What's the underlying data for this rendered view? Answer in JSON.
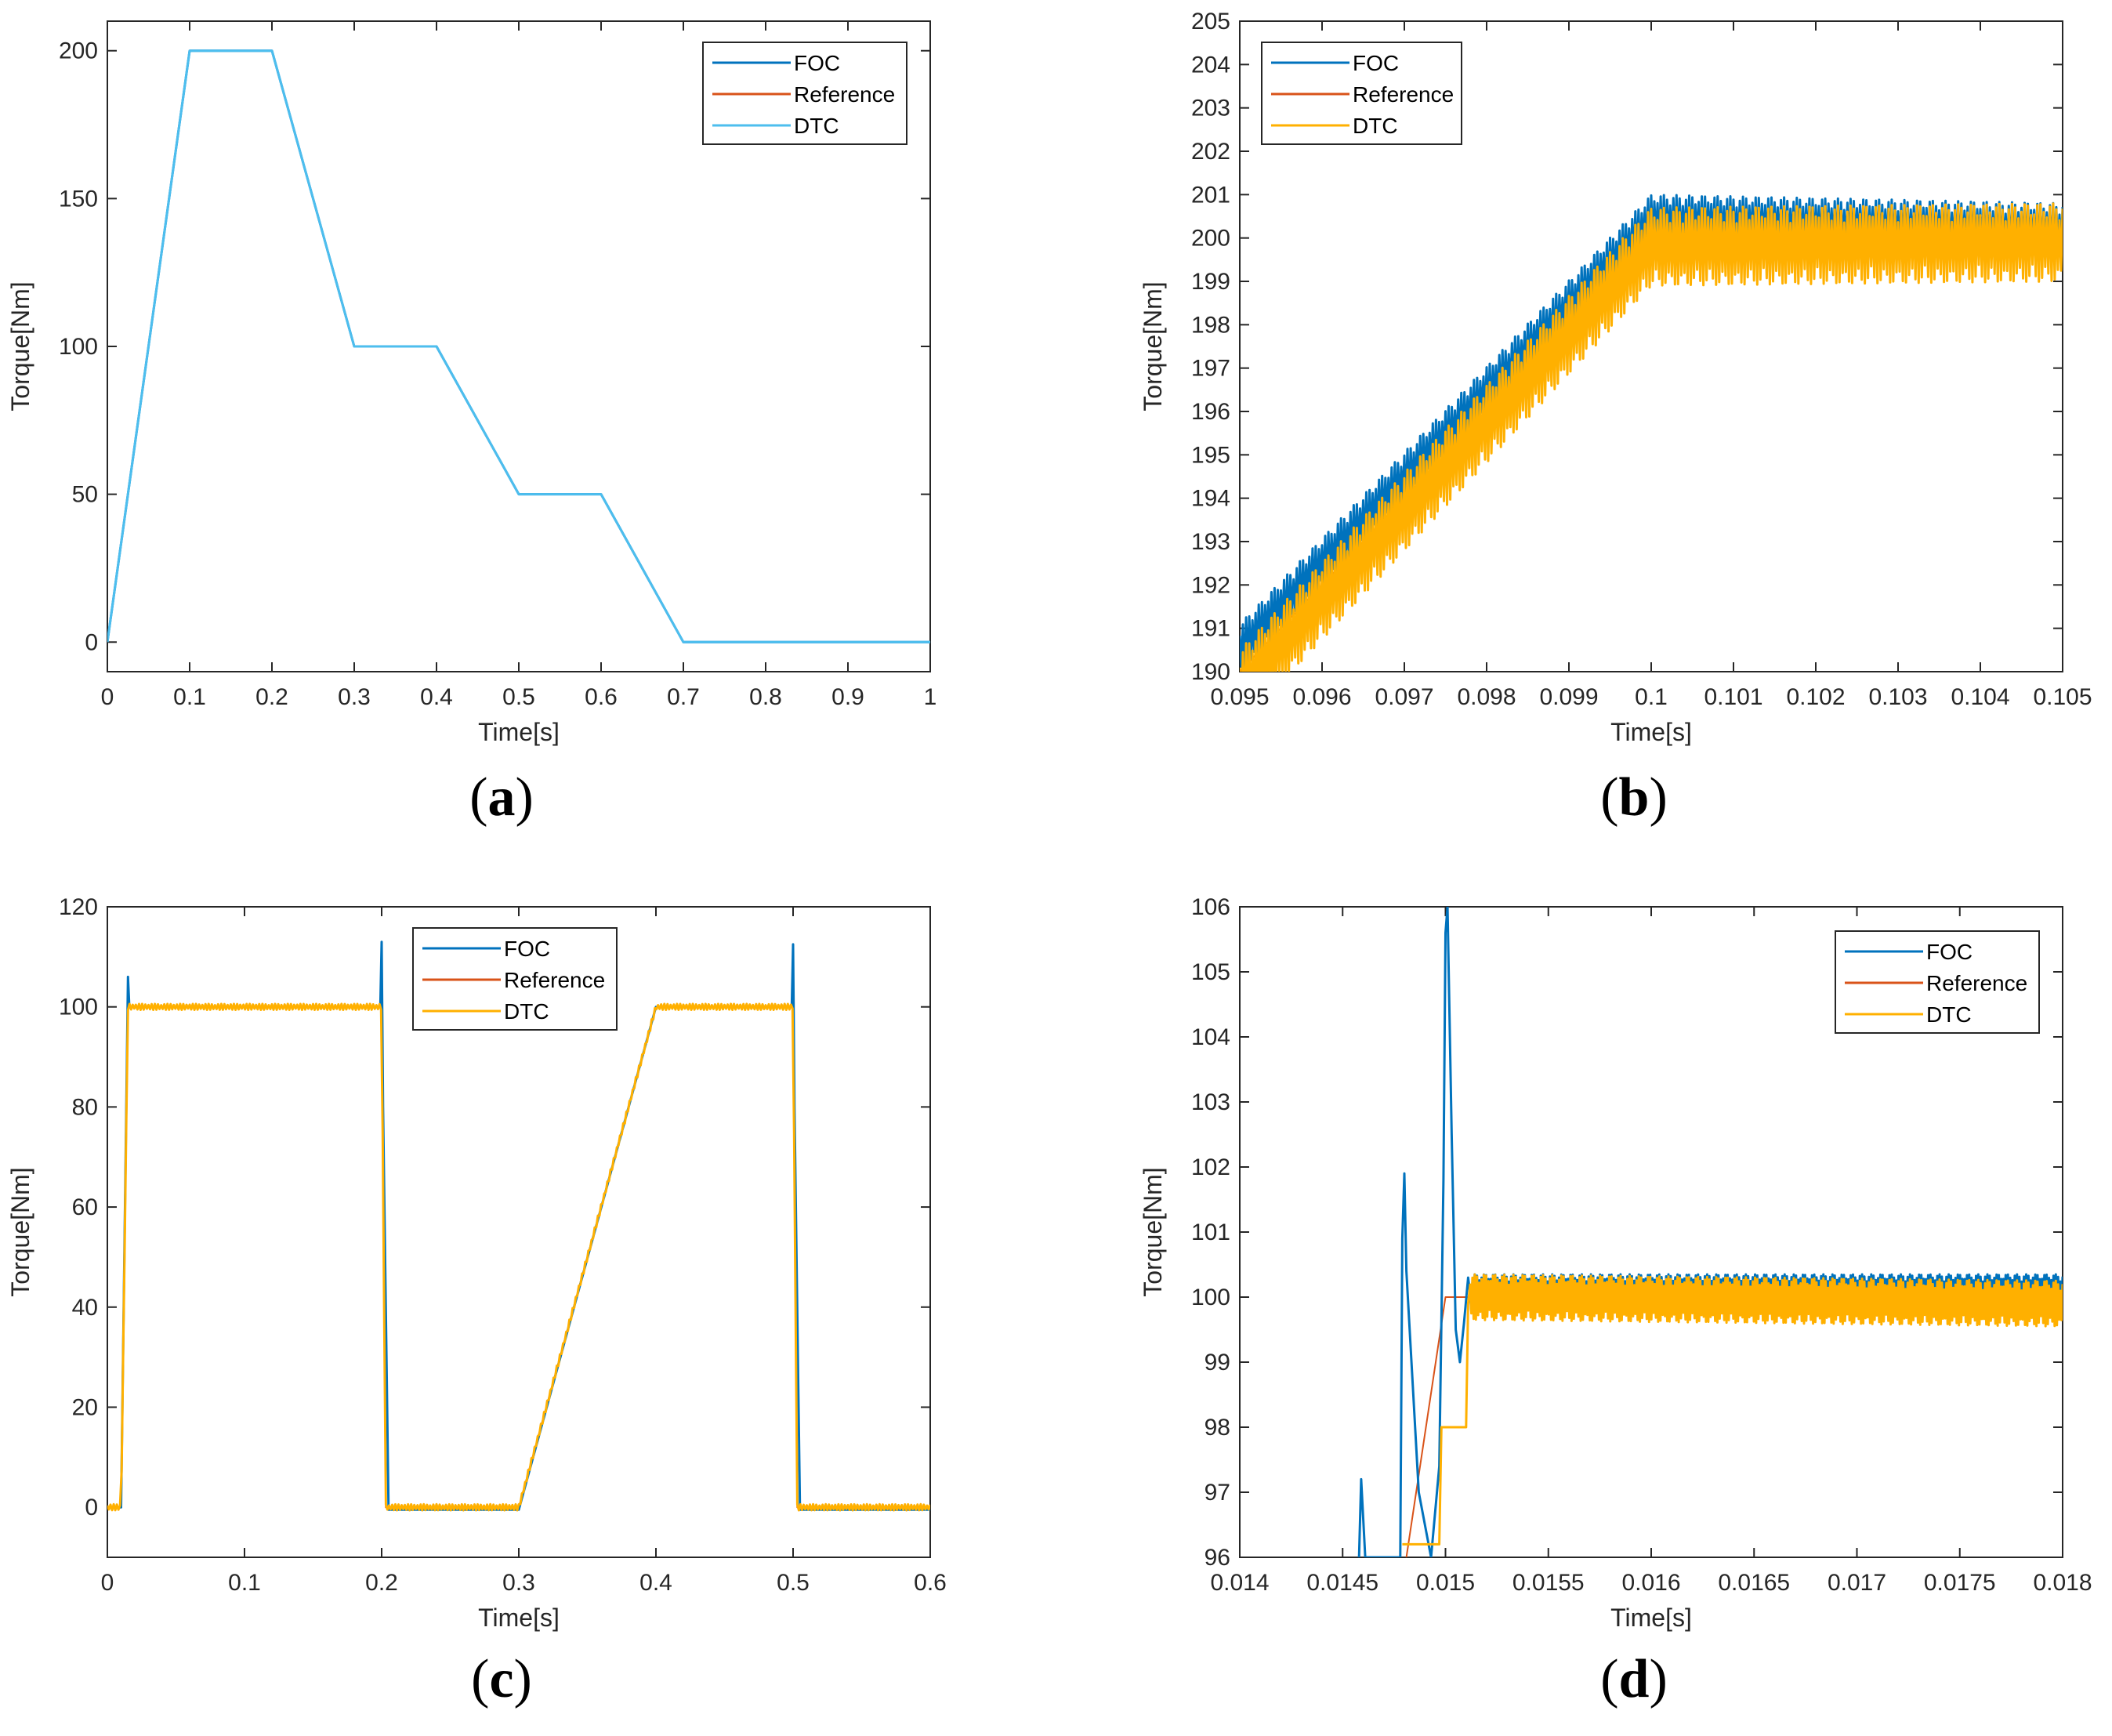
{
  "chart_data": [
    {
      "panel": "a",
      "type": "line",
      "caption_letter": "a",
      "xlabel": "Time[s]",
      "ylabel": "Torque[Nm]",
      "xlim": [
        0,
        1
      ],
      "ylim": [
        -10,
        210
      ],
      "xticks": [
        0,
        0.1,
        0.2,
        0.3,
        0.4,
        0.5,
        0.6,
        0.7,
        0.8,
        0.9,
        1
      ],
      "xtick_labels": [
        "0",
        "0.1",
        "0.2",
        "0.3",
        "0.4",
        "0.5",
        "0.6",
        "0.7",
        "0.8",
        "0.9",
        "1"
      ],
      "yticks": [
        0,
        50,
        100,
        150,
        200
      ],
      "ytick_labels": [
        "0",
        "50",
        "100",
        "150",
        "200"
      ],
      "legend_position": "top-right",
      "series": [
        {
          "name": "FOC",
          "color": "#0072BD",
          "x": [
            0,
            0.1,
            0.2,
            0.3,
            0.4,
            0.5,
            0.6,
            0.7,
            1
          ],
          "y": [
            0,
            200,
            200,
            100,
            100,
            50,
            50,
            0,
            0
          ]
        },
        {
          "name": "Reference",
          "color": "#D95319",
          "x": [
            0,
            0.1,
            0.2,
            0.3,
            0.4,
            0.5,
            0.6,
            0.7,
            1
          ],
          "y": [
            0,
            200,
            200,
            100,
            100,
            50,
            50,
            0,
            0
          ]
        },
        {
          "name": "DTC",
          "color": "#4DBEEE",
          "x": [
            0,
            0.1,
            0.2,
            0.3,
            0.4,
            0.5,
            0.6,
            0.7,
            1
          ],
          "y": [
            0,
            200,
            200,
            100,
            100,
            50,
            50,
            0,
            0
          ]
        }
      ]
    },
    {
      "panel": "b",
      "type": "line",
      "caption_letter": "b",
      "xlabel": "Time[s]",
      "ylabel": "Torque[Nm]",
      "xlim": [
        0.095,
        0.105
      ],
      "ylim": [
        190,
        205
      ],
      "xticks": [
        0.095,
        0.096,
        0.097,
        0.098,
        0.099,
        0.1,
        0.101,
        0.102,
        0.103,
        0.104,
        0.105
      ],
      "xtick_labels": [
        "0.095",
        "0.096",
        "0.097",
        "0.098",
        "0.099",
        "0.1",
        "0.101",
        "0.102",
        "0.103",
        "0.104",
        "0.105"
      ],
      "yticks": [
        190,
        191,
        192,
        193,
        194,
        195,
        196,
        197,
        198,
        199,
        200,
        201,
        202,
        203,
        204,
        205
      ],
      "ytick_labels": [
        "190",
        "191",
        "192",
        "193",
        "194",
        "195",
        "196",
        "197",
        "198",
        "199",
        "200",
        "201",
        "202",
        "203",
        "204",
        "205"
      ],
      "legend_position": "top-left",
      "series": [
        {
          "name": "FOC",
          "color": "#0072BD",
          "x": [
            0.095,
            0.1,
            0.105
          ],
          "y": [
            190.5,
            200.4,
            200.2
          ],
          "ripple": 0.6
        },
        {
          "name": "Reference",
          "color": "#D95319",
          "x": [
            0.095,
            0.1,
            0.105
          ],
          "y": [
            190,
            200,
            200
          ]
        },
        {
          "name": "DTC",
          "color": "#FFB000",
          "x": [
            0.095,
            0.1,
            0.105
          ],
          "y": [
            189.6,
            199.8,
            199.9
          ],
          "ripple": 0.9
        }
      ]
    },
    {
      "panel": "c",
      "type": "line",
      "caption_letter": "c",
      "xlabel": "Time[s]",
      "ylabel": "Torque[Nm]",
      "xlim": [
        0,
        0.6
      ],
      "ylim": [
        -10,
        120
      ],
      "xticks": [
        0,
        0.1,
        0.2,
        0.3,
        0.4,
        0.5,
        0.6
      ],
      "xtick_labels": [
        "0",
        "0.1",
        "0.2",
        "0.3",
        "0.4",
        "0.5",
        "0.6"
      ],
      "yticks": [
        0,
        20,
        40,
        60,
        80,
        100,
        120
      ],
      "ytick_labels": [
        "0",
        "20",
        "40",
        "60",
        "80",
        "100",
        "120"
      ],
      "legend_position": "top-center",
      "series": [
        {
          "name": "FOC",
          "color": "#0072BD",
          "x": [
            0,
            0.01,
            0.015,
            0.016,
            0.017,
            0.199,
            0.2,
            0.201,
            0.205,
            0.3,
            0.4,
            0.499,
            0.5,
            0.501,
            0.505,
            0.6
          ],
          "y": [
            0,
            0,
            106,
            100,
            100,
            100,
            113,
            80,
            -0.5,
            -0.5,
            100,
            100,
            112.5,
            80,
            -0.5,
            -0.5
          ]
        },
        {
          "name": "Reference",
          "color": "#D95319",
          "x": [
            0,
            0.01,
            0.015,
            0.2,
            0.203,
            0.3,
            0.4,
            0.5,
            0.503,
            0.6
          ],
          "y": [
            0,
            0,
            100,
            100,
            0,
            0,
            100,
            100,
            0,
            0
          ]
        },
        {
          "name": "DTC",
          "color": "#FFB000",
          "x": [
            0,
            0.01,
            0.015,
            0.2,
            0.203,
            0.3,
            0.4,
            0.5,
            0.503,
            0.6
          ],
          "y": [
            0,
            0,
            100,
            100,
            0,
            0,
            100,
            100,
            0,
            0
          ],
          "ripple": 0.6
        }
      ]
    },
    {
      "panel": "d",
      "type": "line",
      "caption_letter": "d",
      "xlabel": "Time[s]",
      "ylabel": "Torque[Nm]",
      "xlim": [
        0.014,
        0.018
      ],
      "ylim": [
        96,
        106
      ],
      "xticks": [
        0.014,
        0.0145,
        0.015,
        0.0155,
        0.016,
        0.0165,
        0.017,
        0.0175,
        0.018
      ],
      "xtick_labels": [
        "0.014",
        "0.0145",
        "0.015",
        "0.0155",
        "0.016",
        "0.0165",
        "0.017",
        "0.0175",
        "0.018"
      ],
      "yticks": [
        96,
        97,
        98,
        99,
        100,
        101,
        102,
        103,
        104,
        105,
        106
      ],
      "ytick_labels": [
        "96",
        "97",
        "98",
        "99",
        "100",
        "101",
        "102",
        "103",
        "104",
        "105",
        "106"
      ],
      "legend_position": "top-right",
      "series": [
        {
          "name": "FOC",
          "color": "#0072BD",
          "x": [
            0.01458,
            0.01459,
            0.0146,
            0.01461,
            0.01478,
            0.01479,
            0.0148,
            0.01481,
            0.01487,
            0.01493,
            0.01497,
            0.01499,
            0.015,
            0.01501,
            0.01503,
            0.01505,
            0.01507,
            0.01509,
            0.01511,
            0.01512,
            0.01514,
            0.018
          ],
          "y": [
            96,
            97.2,
            96.6,
            96,
            96,
            100.9,
            101.9,
            100.4,
            97.0,
            96.0,
            97.4,
            101.8,
            105.6,
            106.0,
            102.5,
            99.5,
            99.0,
            99.6,
            100.3,
            99.9,
            100.1,
            100.1
          ],
          "ripple": 0.25,
          "ripple_start": 0.01512
        },
        {
          "name": "Reference",
          "color": "#D95319",
          "x": [
            0.01481,
            0.015,
            0.01512,
            0.018
          ],
          "y": [
            96,
            100,
            100,
            100
          ]
        },
        {
          "name": "DTC",
          "color": "#FFB000",
          "x": [
            0.01479,
            0.01497,
            0.01498,
            0.0151,
            0.01511,
            0.01512,
            0.018
          ],
          "y": [
            96.2,
            96.2,
            98.0,
            98.0,
            99.9,
            100.0,
            99.9
          ],
          "ripple": 0.35,
          "ripple_start": 0.01512
        }
      ]
    }
  ]
}
